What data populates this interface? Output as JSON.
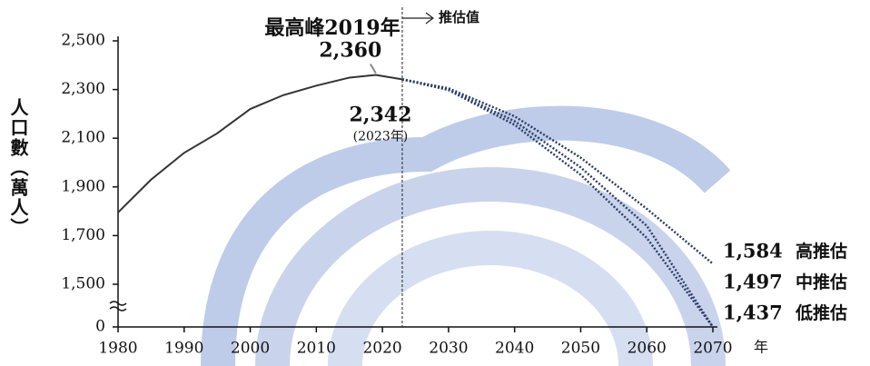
{
  "chart_data": {
    "type": "line",
    "title": "最高峰2019年",
    "y_label": "人口數（萬人）",
    "x_label": "年",
    "projection_label": "推估值",
    "peak_year_note": "(2023年)",
    "xlim": [
      1980,
      2070
    ],
    "xticks": [
      1980,
      1990,
      2000,
      2010,
      2020,
      2030,
      2040,
      2050,
      2060,
      2070
    ],
    "ylim": [
      0,
      2500
    ],
    "yticks": [
      0,
      {
        "value": 1500,
        "label": "1,500"
      },
      {
        "value": 1700,
        "label": "1,700"
      },
      {
        "value": 1900,
        "label": "1,900"
      },
      {
        "value": 2100,
        "label": "2,100"
      },
      {
        "value": 2300,
        "label": "2,300"
      },
      {
        "value": 2500,
        "label": "2,500"
      }
    ],
    "axis_break": true,
    "series": [
      {
        "color": "#333333",
        "style": "solid",
        "x": [
          1980,
          1985,
          1990,
          1995,
          2000,
          2005,
          2010,
          2015,
          2019,
          2023
        ],
        "values": [
          1795,
          1930,
          2040,
          2120,
          2220,
          2277,
          2316,
          2349,
          2360,
          2342
        ],
        "value_labels": [
          null,
          null,
          null,
          null,
          null,
          null,
          null,
          null,
          "2,360",
          "2,342"
        ]
      },
      {
        "name": "高推估",
        "color": "#2c3e66",
        "style": "dotted",
        "x": [
          2023,
          2030,
          2040,
          2050,
          2060,
          2070
        ],
        "values": [
          2342,
          2305,
          2190,
          2020,
          1810,
          1584
        ],
        "value_labels": [
          null,
          null,
          null,
          null,
          null,
          "1,584"
        ]
      },
      {
        "name": "中推估",
        "color": "#2c3e66",
        "style": "dotted",
        "x": [
          2023,
          2030,
          2040,
          2050,
          2060,
          2070
        ],
        "values": [
          2342,
          2300,
          2170,
          1980,
          1740,
          1497
        ],
        "value_labels": [
          null,
          null,
          null,
          null,
          null,
          "1,497"
        ]
      },
      {
        "name": "低推估",
        "color": "#2c3e66",
        "style": "dotted",
        "x": [
          2023,
          2030,
          2040,
          2050,
          2060,
          2070
        ],
        "values": [
          2342,
          2298,
          2155,
          1950,
          1690,
          1437
        ],
        "value_labels": [
          null,
          null,
          null,
          null,
          null,
          "1,437"
        ]
      }
    ]
  }
}
